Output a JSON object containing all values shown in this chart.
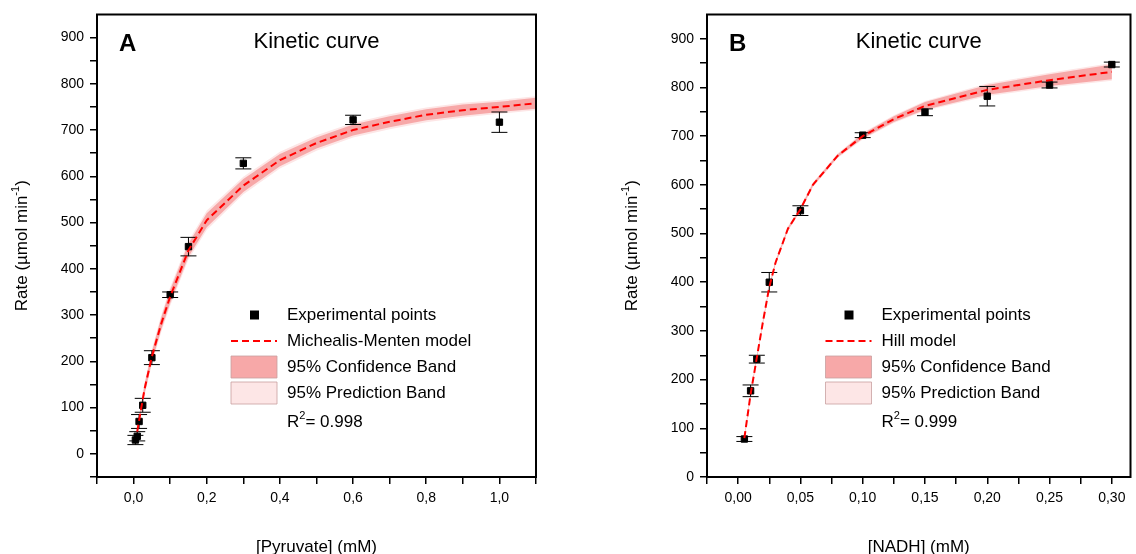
{
  "chart_data": [
    {
      "type": "scatter",
      "title": "Kinetic curve",
      "xlabel": "[Pyruvate] (mM)",
      "ylabel": "Rate (µmol min$^{-1}$)",
      "xlim": [
        -0.1,
        1.1
      ],
      "ylim": [
        -50,
        950
      ],
      "xticks": [
        {
          "value": -0.1,
          "label": null
        },
        {
          "value": 0,
          "label": "0,0"
        },
        {
          "value": 0.1,
          "label": null
        },
        {
          "value": 0.2,
          "label": "0,2"
        },
        {
          "value": 0.3,
          "label": null
        },
        {
          "value": 0.4,
          "label": "0,4"
        },
        {
          "value": 0.5,
          "label": null
        },
        {
          "value": 0.6,
          "label": "0,6"
        },
        {
          "value": 0.7,
          "label": null
        },
        {
          "value": 0.8,
          "label": "0,8"
        },
        {
          "value": 0.9,
          "label": null
        },
        {
          "value": 1.0,
          "label": "1,0"
        },
        {
          "value": 1.1,
          "label": null
        }
      ],
      "yticks": [
        {
          "value": -50,
          "label": null
        },
        0,
        {
          "value": 50,
          "label": null
        },
        100,
        {
          "value": 150,
          "label": null
        },
        200,
        {
          "value": 250,
          "label": null
        },
        300,
        {
          "value": 350,
          "label": null
        },
        400,
        {
          "value": 450,
          "label": null
        },
        500,
        {
          "value": 550,
          "label": null
        },
        600,
        {
          "value": 650,
          "label": null
        },
        700,
        {
          "value": 750,
          "label": null
        },
        800,
        {
          "value": 850,
          "label": null
        },
        900
      ],
      "grid": false,
      "legend": "bottom right",
      "annotations": [
        "A",
        "R$^{2}$= 0.998"
      ],
      "series": [
        {
          "name": "95% Prediction Band",
          "type": "line",
          "color": "#fde6e6",
          "x": [
            0.005,
            0.01,
            0.02,
            0.03,
            0.05,
            0.075,
            0.1,
            0.15,
            0.2,
            0.3,
            0.4,
            0.5,
            0.6,
            0.7,
            0.8,
            0.9,
            1.0,
            1.1
          ],
          "values": [
            null,
            null,
            null,
            null,
            null,
            null,
            null,
            null,
            null,
            null,
            null,
            null,
            null,
            null,
            null,
            null,
            null,
            null
          ],
          "lower": [
            17,
            38,
            83,
            126,
            194,
            262,
            320,
            420,
            484,
            561,
            617,
            655,
            684,
            702,
            717,
            727,
            735,
            743
          ],
          "upper": [
            33,
            58,
            107,
            154,
            226,
            298,
            360,
            460,
            526,
            599,
            653,
            689,
            716,
            734,
            749,
            759,
            765,
            773
          ]
        },
        {
          "name": "95% Confidence Band",
          "type": "line",
          "color": "#f7a8a8",
          "x": [
            0.005,
            0.01,
            0.02,
            0.03,
            0.05,
            0.075,
            0.1,
            0.15,
            0.2,
            0.3,
            0.4,
            0.5,
            0.6,
            0.7,
            0.8,
            0.9,
            1.0,
            1.1
          ],
          "values": [
            null,
            null,
            null,
            null,
            null,
            null,
            null,
            null,
            null,
            null,
            null,
            null,
            null,
            null,
            null,
            null,
            null,
            null
          ],
          "lower": [
            20,
            42,
            87,
            130,
            199,
            267,
            326,
            426,
            490,
            566,
            622,
            660,
            688,
            706,
            721,
            731,
            739,
            746
          ],
          "upper": [
            30,
            54,
            103,
            150,
            221,
            293,
            354,
            454,
            520,
            594,
            648,
            684,
            712,
            730,
            745,
            755,
            761,
            770
          ]
        },
        {
          "name": "Michealis-Menten model",
          "type": "line",
          "color": "#ff0000",
          "line_style": "dashed",
          "x": [
            0.01,
            0.02,
            0.03,
            0.05,
            0.075,
            0.1,
            0.15,
            0.2,
            0.3,
            0.4,
            0.5,
            0.6,
            0.7,
            0.8,
            0.9,
            1.0,
            1.1
          ],
          "values": [
            48,
            95,
            140,
            210,
            280,
            340,
            440,
            505,
            580,
            635,
            672,
            700,
            718,
            733,
            743,
            750,
            758
          ]
        },
        {
          "name": "Experimental points",
          "type": "scatter",
          "marker": "square",
          "color": "#000000",
          "x": [
            0.005,
            0.01,
            0.015,
            0.025,
            0.05,
            0.1,
            0.15,
            0.3,
            0.6,
            1.0
          ],
          "values": [
            30,
            38,
            70,
            105,
            208,
            344,
            448,
            628,
            722,
            717
          ],
          "errors": [
            10,
            10,
            15,
            15,
            15,
            6,
            20,
            12,
            10,
            22
          ]
        }
      ]
    },
    {
      "type": "scatter",
      "title": "Kinetic curve",
      "xlabel": "[NADH] (mM)",
      "ylabel": "Rate (µmol min$^{-1}$)",
      "xlim": [
        -0.025,
        0.315
      ],
      "ylim": [
        0,
        950
      ],
      "xticks": [
        {
          "value": -0.025,
          "label": null
        },
        {
          "value": 0,
          "label": "0,00"
        },
        {
          "value": 0.025,
          "label": null
        },
        {
          "value": 0.05,
          "label": "0,05"
        },
        {
          "value": 0.075,
          "label": null
        },
        {
          "value": 0.1,
          "label": "0,10"
        },
        {
          "value": 0.125,
          "label": null
        },
        {
          "value": 0.15,
          "label": "0,15"
        },
        {
          "value": 0.175,
          "label": null
        },
        {
          "value": 0.2,
          "label": "0,20"
        },
        {
          "value": 0.225,
          "label": null
        },
        {
          "value": 0.25,
          "label": "0,25"
        },
        {
          "value": 0.275,
          "label": null
        },
        {
          "value": 0.3,
          "label": "0,30"
        }
      ],
      "yticks": [
        0,
        {
          "value": 50,
          "label": null
        },
        100,
        {
          "value": 150,
          "label": null
        },
        200,
        {
          "value": 250,
          "label": null
        },
        300,
        {
          "value": 350,
          "label": null
        },
        400,
        {
          "value": 450,
          "label": null
        },
        500,
        {
          "value": 550,
          "label": null
        },
        600,
        {
          "value": 650,
          "label": null
        },
        700,
        {
          "value": 750,
          "label": null
        },
        800,
        {
          "value": 850,
          "label": null
        },
        900
      ],
      "grid": false,
      "legend": "bottom right",
      "annotations": [
        "B",
        "R$^{2}$= 0.999"
      ],
      "series": [
        {
          "name": "95% Prediction Band",
          "type": "line",
          "color": "#fde6e6",
          "x": [
            0.005,
            0.01,
            0.015,
            0.02,
            0.025,
            0.03,
            0.04,
            0.05,
            0.06,
            0.08,
            0.1,
            0.125,
            0.15,
            0.2,
            0.25,
            0.3
          ],
          "values": [
            null,
            null,
            null,
            null,
            null,
            null,
            null,
            null,
            null,
            null,
            null,
            null,
            null,
            null,
            null,
            null
          ],
          "lower": [
            75,
            165,
            240,
            315,
            385,
            435,
            505,
            545,
            595,
            655,
            693,
            727,
            752,
            782,
            800,
            814
          ],
          "upper": [
            85,
            175,
            250,
            325,
            395,
            445,
            515,
            555,
            605,
            665,
            707,
            743,
            772,
            808,
            830,
            850
          ]
        },
        {
          "name": "95% Confidence Band",
          "type": "line",
          "color": "#f7a8a8",
          "x": [
            0.005,
            0.01,
            0.015,
            0.02,
            0.025,
            0.03,
            0.04,
            0.05,
            0.06,
            0.08,
            0.1,
            0.125,
            0.15,
            0.2,
            0.25,
            0.3
          ],
          "values": [
            null,
            null,
            null,
            null,
            null,
            null,
            null,
            null,
            null,
            null,
            null,
            null,
            null,
            null,
            null,
            null
          ],
          "lower": [
            77,
            167,
            242,
            317,
            387,
            437,
            507,
            547,
            597,
            657,
            695,
            729,
            754,
            785,
            803,
            817
          ],
          "upper": [
            83,
            173,
            248,
            323,
            393,
            443,
            513,
            553,
            603,
            663,
            705,
            741,
            770,
            805,
            827,
            847
          ]
        },
        {
          "name": "Hill model",
          "type": "line",
          "color": "#ff0000",
          "line_style": "dashed",
          "x": [
            0.005,
            0.01,
            0.015,
            0.02,
            0.025,
            0.03,
            0.04,
            0.05,
            0.06,
            0.08,
            0.1,
            0.125,
            0.15,
            0.2,
            0.25,
            0.3
          ],
          "values": [
            80,
            170,
            245,
            320,
            390,
            440,
            510,
            550,
            600,
            660,
            700,
            735,
            762,
            795,
            815,
            832
          ]
        },
        {
          "name": "Experimental points",
          "type": "scatter",
          "marker": "square",
          "color": "#000000",
          "x": [
            0.005,
            0.01,
            0.015,
            0.025,
            0.05,
            0.1,
            0.15,
            0.2,
            0.25,
            0.3
          ],
          "values": [
            78,
            177,
            242,
            400,
            547,
            702,
            749,
            782,
            805,
            847
          ],
          "errors": [
            5,
            12,
            8,
            20,
            10,
            5,
            7,
            20,
            6,
            5
          ]
        }
      ]
    }
  ]
}
